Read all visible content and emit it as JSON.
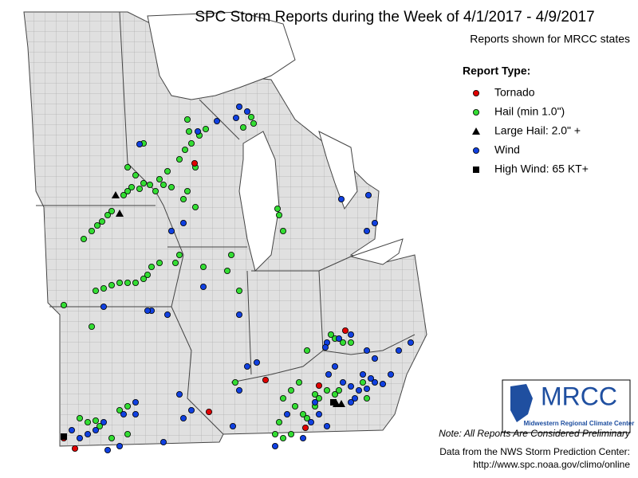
{
  "title": "SPC Storm Reports during the Week of 4/1/2017 - 4/9/2017",
  "subtitle": "Reports shown for MRCC states",
  "legend": {
    "title": "Report Type:",
    "items": [
      {
        "label": "Tornado",
        "color": "#e00000",
        "shape": "circle"
      },
      {
        "label": "Hail (min 1.0\")",
        "color": "#33dd33",
        "shape": "circle"
      },
      {
        "label": "Large Hail: 2.0\" +",
        "color": "#000000",
        "shape": "triangle"
      },
      {
        "label": "Wind",
        "color": "#1040e0",
        "shape": "circle"
      },
      {
        "label": "High Wind: 65 KT+",
        "color": "#000000",
        "shape": "square"
      }
    ]
  },
  "logo": {
    "text": "MRCC",
    "subtitle": "Midwestern Regional Climate Center"
  },
  "note": "Note: All Reports Are Considered Preliminary",
  "source": [
    "Data from the NWS Storm Prediction Center:",
    "http://www.spc.noaa.gov/climo/online"
  ]
}
